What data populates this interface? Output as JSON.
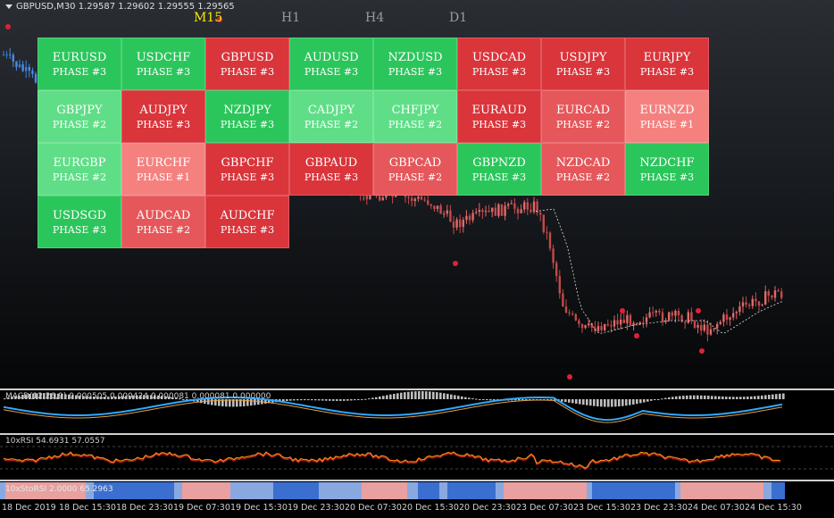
{
  "header": {
    "symbol_info": "GBPUSD,M30  1.29587 1.29602 1.29555 1.29565"
  },
  "timeframes": [
    {
      "label": "M15",
      "active": true
    },
    {
      "label": "H1",
      "active": false
    },
    {
      "label": "H4",
      "active": false
    },
    {
      "label": "D1",
      "active": false
    }
  ],
  "colors": {
    "strong_green": "#2bc65b",
    "light_green": "#5fde87",
    "strong_red": "#d9353b",
    "medium_red": "#e5575a",
    "light_red": "#f07f7e",
    "phase1_red": "#f5817f"
  },
  "pairs": [
    {
      "pair": "EURUSD",
      "phase": "PHASE #3",
      "color": "#2bc65b"
    },
    {
      "pair": "USDCHF",
      "phase": "PHASE #3",
      "color": "#2bc65b"
    },
    {
      "pair": "GBPUSD",
      "phase": "PHASE #3",
      "color": "#d9353b"
    },
    {
      "pair": "AUDUSD",
      "phase": "PHASE #3",
      "color": "#2bc65b"
    },
    {
      "pair": "NZDUSD",
      "phase": "PHASE #3",
      "color": "#2bc65b"
    },
    {
      "pair": "USDCAD",
      "phase": "PHASE #3",
      "color": "#d9353b"
    },
    {
      "pair": "USDJPY",
      "phase": "PHASE #3",
      "color": "#d9353b"
    },
    {
      "pair": "EURJPY",
      "phase": "PHASE #3",
      "color": "#d9353b"
    },
    {
      "pair": "GBPJPY",
      "phase": "PHASE #2",
      "color": "#5fde87"
    },
    {
      "pair": "AUDJPY",
      "phase": "PHASE #3",
      "color": "#d9353b"
    },
    {
      "pair": "NZDJPY",
      "phase": "PHASE #3",
      "color": "#2bc65b"
    },
    {
      "pair": "CADJPY",
      "phase": "PHASE #2",
      "color": "#5fde87"
    },
    {
      "pair": "CHFJPY",
      "phase": "PHASE #2",
      "color": "#5fde87"
    },
    {
      "pair": "EURAUD",
      "phase": "PHASE #3",
      "color": "#d9353b"
    },
    {
      "pair": "EURCAD",
      "phase": "PHASE #2",
      "color": "#e5575a"
    },
    {
      "pair": "EURNZD",
      "phase": "PHASE #1",
      "color": "#f5817f"
    },
    {
      "pair": "EURGBP",
      "phase": "PHASE #2",
      "color": "#5fde87"
    },
    {
      "pair": "EURCHF",
      "phase": "PHASE #1",
      "color": "#f5817f"
    },
    {
      "pair": "GBPCHF",
      "phase": "PHASE #3",
      "color": "#d9353b"
    },
    {
      "pair": "GBPAUD",
      "phase": "PHASE #3",
      "color": "#d9353b"
    },
    {
      "pair": "GBPCAD",
      "phase": "PHASE #2",
      "color": "#e5575a"
    },
    {
      "pair": "GBPNZD",
      "phase": "PHASE #3",
      "color": "#2bc65b"
    },
    {
      "pair": "NZDCAD",
      "phase": "PHASE #2",
      "color": "#e5575a"
    },
    {
      "pair": "NZDCHF",
      "phase": "PHASE #3",
      "color": "#2bc65b"
    },
    {
      "pair": "USDSGD",
      "phase": "PHASE #3",
      "color": "#2bc65b"
    },
    {
      "pair": "AUDCAD",
      "phase": "PHASE #2",
      "color": "#e5575a"
    },
    {
      "pair": "AUDCHF",
      "phase": "PHASE #3",
      "color": "#d9353b"
    }
  ],
  "indicators": {
    "macd_label": "MACD(12,26,9) 0.000505 0.000424 0.000081 0.000081 0.000000",
    "rsi_label": "10xRSI 54.6931 57.0557",
    "stoch_label": "10xStoRSI 2.0000 65.2963"
  },
  "time_axis": [
    "18 Dec 2019",
    "18 Dec 15:30",
    "18 Dec 23:30",
    "19 Dec 07:30",
    "19 Dec 15:30",
    "19 Dec 23:30",
    "20 Dec 07:30",
    "20 Dec 15:30",
    "20 Dec 23:30",
    "23 Dec 07:30",
    "23 Dec 15:30",
    "23 Dec 23:30",
    "24 Dec 07:30",
    "24 Dec 15:30"
  ]
}
